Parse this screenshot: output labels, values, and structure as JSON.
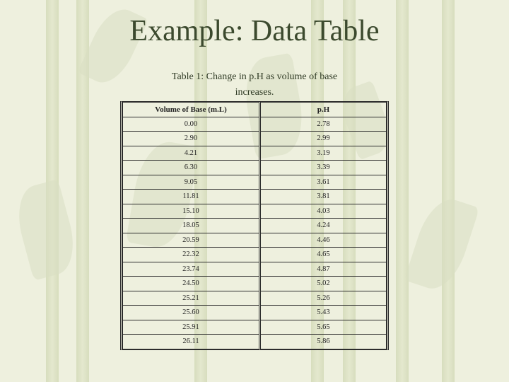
{
  "title": "Example: Data Table",
  "caption_line1": "Table 1: Change in p.H as volume of base",
  "caption_line2": "increases.",
  "table": {
    "columns": [
      "Volume of Base (m.L)",
      "p.H"
    ],
    "rows": [
      [
        "0.00",
        "2.78"
      ],
      [
        "2.90",
        "2.99"
      ],
      [
        "4.21",
        "3.19"
      ],
      [
        "6.30",
        "3.39"
      ],
      [
        "9.05",
        "3.61"
      ],
      [
        "11.81",
        "3.81"
      ],
      [
        "15.10",
        "4.03"
      ],
      [
        "18.05",
        "4.24"
      ],
      [
        "20.59",
        "4.46"
      ],
      [
        "22.32",
        "4.65"
      ],
      [
        "23.74",
        "4.87"
      ],
      [
        "24.50",
        "5.02"
      ],
      [
        "25.21",
        "5.26"
      ],
      [
        "25.60",
        "5.43"
      ],
      [
        "25.91",
        "5.65"
      ],
      [
        "26.11",
        "5.86"
      ]
    ]
  },
  "colors": {
    "background": "#eef0de",
    "title": "#3c4a2e",
    "border": "#2c2c2c",
    "bamboo": "#d7ddbd",
    "leaf": "#d9dfc2"
  }
}
